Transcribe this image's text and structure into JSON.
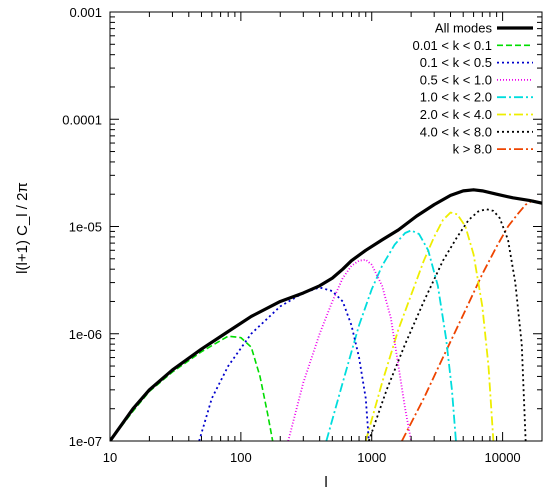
{
  "chart_data": {
    "type": "line",
    "title": "",
    "xlabel": "l",
    "ylabel": "l(l+1) C_l / 2π",
    "xscale": "log",
    "yscale": "log",
    "xlim": [
      10,
      20000
    ],
    "ylim": [
      1e-07,
      0.001
    ],
    "x_ticks": [
      10,
      100,
      1000,
      10000
    ],
    "x_tick_labels": [
      "10",
      "100",
      "1000",
      "10000"
    ],
    "y_ticks": [
      1e-07,
      1e-06,
      1e-05,
      0.0001,
      0.001
    ],
    "y_tick_labels": [
      "1e-07",
      "1e-06",
      "1e-05",
      "0.0001",
      "0.001"
    ],
    "grid": false,
    "legend_position": "top-right",
    "series": [
      {
        "name": "All modes",
        "color": "#000000",
        "dash": "solid",
        "width": 3.2,
        "points": [
          [
            10,
            1e-07
          ],
          [
            15,
            2e-07
          ],
          [
            20,
            3e-07
          ],
          [
            30,
            4.6e-07
          ],
          [
            50,
            7.2e-07
          ],
          [
            80,
            1.05e-06
          ],
          [
            120,
            1.45e-06
          ],
          [
            200,
            2e-06
          ],
          [
            300,
            2.4e-06
          ],
          [
            400,
            2.8e-06
          ],
          [
            500,
            3.3e-06
          ],
          [
            600,
            4e-06
          ],
          [
            700,
            4.8e-06
          ],
          [
            900,
            6e-06
          ],
          [
            1200,
            7.5e-06
          ],
          [
            1600,
            9.3e-06
          ],
          [
            2200,
            1.25e-05
          ],
          [
            3000,
            1.6e-05
          ],
          [
            4000,
            1.95e-05
          ],
          [
            5000,
            2.15e-05
          ],
          [
            6000,
            2.2e-05
          ],
          [
            7000,
            2.15e-05
          ],
          [
            9000,
            2e-05
          ],
          [
            12000,
            1.85e-05
          ],
          [
            16000,
            1.75e-05
          ],
          [
            20000,
            1.65e-05
          ]
        ]
      },
      {
        "name": "0.01 < k < 0.1",
        "color": "#00dd00",
        "dash": "6,3",
        "width": 1.6,
        "points": [
          [
            10,
            1e-07
          ],
          [
            15,
            1.9e-07
          ],
          [
            20,
            2.9e-07
          ],
          [
            30,
            4.4e-07
          ],
          [
            50,
            6.8e-07
          ],
          [
            80,
            9.5e-07
          ],
          [
            100,
            9.2e-07
          ],
          [
            120,
            7.5e-07
          ],
          [
            140,
            4e-07
          ],
          [
            160,
            1.8e-07
          ],
          [
            175,
            1e-07
          ]
        ]
      },
      {
        "name": "0.1 < k < 0.5",
        "color": "#0000cc",
        "dash": "2,3",
        "width": 1.8,
        "points": [
          [
            48,
            1e-07
          ],
          [
            60,
            2.5e-07
          ],
          [
            80,
            5e-07
          ],
          [
            120,
            1e-06
          ],
          [
            200,
            1.8e-06
          ],
          [
            300,
            2.4e-06
          ],
          [
            400,
            2.7e-06
          ],
          [
            500,
            2.5e-06
          ],
          [
            600,
            2e-06
          ],
          [
            700,
            1.2e-06
          ],
          [
            800,
            6e-07
          ],
          [
            900,
            2.5e-07
          ],
          [
            950,
            1e-07
          ]
        ]
      },
      {
        "name": "0.5 < k < 1.0",
        "color": "#ee00ee",
        "dash": "1,2",
        "width": 1.8,
        "points": [
          [
            230,
            1e-07
          ],
          [
            300,
            3.5e-07
          ],
          [
            400,
            1e-06
          ],
          [
            500,
            2e-06
          ],
          [
            600,
            3.3e-06
          ],
          [
            700,
            4.3e-06
          ],
          [
            800,
            4.8e-06
          ],
          [
            900,
            4.9e-06
          ],
          [
            1000,
            4.4e-06
          ],
          [
            1200,
            2.8e-06
          ],
          [
            1400,
            1.4e-06
          ],
          [
            1600,
            5e-07
          ],
          [
            1800,
            2e-07
          ],
          [
            2000,
            1e-07
          ]
        ]
      },
      {
        "name": "1.0 < k < 2.0",
        "color": "#00dddd",
        "dash": "9,3,2,3",
        "width": 1.8,
        "points": [
          [
            450,
            1e-07
          ],
          [
            600,
            3.5e-07
          ],
          [
            800,
            1.2e-06
          ],
          [
            1000,
            2.6e-06
          ],
          [
            1200,
            4.3e-06
          ],
          [
            1500,
            6.8e-06
          ],
          [
            1800,
            8.7e-06
          ],
          [
            2000,
            9.2e-06
          ],
          [
            2300,
            8.5e-06
          ],
          [
            2700,
            6e-06
          ],
          [
            3200,
            2.8e-06
          ],
          [
            3700,
            9e-07
          ],
          [
            4100,
            3e-07
          ],
          [
            4400,
            1e-07
          ]
        ]
      },
      {
        "name": "2.0 < k < 4.0",
        "color": "#eeee00",
        "dash": "9,3,2,3",
        "width": 1.8,
        "points": [
          [
            900,
            1e-07
          ],
          [
            1200,
            3.5e-07
          ],
          [
            1600,
            1.1e-06
          ],
          [
            2000,
            2.3e-06
          ],
          [
            2500,
            4.8e-06
          ],
          [
            3000,
            8e-06
          ],
          [
            3500,
            1.15e-05
          ],
          [
            4000,
            1.35e-05
          ],
          [
            4500,
            1.3e-05
          ],
          [
            5200,
            1e-05
          ],
          [
            6000,
            5.5e-06
          ],
          [
            7000,
            1.8e-06
          ],
          [
            7800,
            5e-07
          ],
          [
            8500,
            1e-07
          ]
        ]
      },
      {
        "name": "4.0 < k < 8.0",
        "color": "#000000",
        "dash": "2,3",
        "width": 1.8,
        "points": [
          [
            950,
            1e-07
          ],
          [
            1300,
            3e-07
          ],
          [
            1800,
            8e-07
          ],
          [
            2500,
            2e-06
          ],
          [
            3500,
            4.8e-06
          ],
          [
            4500,
            8e-06
          ],
          [
            5500,
            1.15e-05
          ],
          [
            6500,
            1.38e-05
          ],
          [
            7500,
            1.45e-05
          ],
          [
            8500,
            1.4e-05
          ],
          [
            9500,
            1.2e-05
          ],
          [
            11000,
            7.5e-06
          ],
          [
            12500,
            3e-06
          ],
          [
            14000,
            8e-07
          ],
          [
            15000,
            1e-07
          ]
        ]
      },
      {
        "name": "k > 8.0",
        "color": "#ee4400",
        "dash": "9,3,2,3",
        "width": 1.8,
        "points": [
          [
            1700,
            1e-07
          ],
          [
            2500,
            2.5e-07
          ],
          [
            3500,
            6e-07
          ],
          [
            5000,
            1.5e-06
          ],
          [
            7000,
            3.6e-06
          ],
          [
            9000,
            6.5e-06
          ],
          [
            11000,
            1e-05
          ],
          [
            13000,
            1.3e-05
          ],
          [
            15000,
            1.6e-05
          ],
          [
            17000,
            1.75e-05
          ],
          [
            20000,
            1.65e-05
          ]
        ]
      }
    ]
  }
}
